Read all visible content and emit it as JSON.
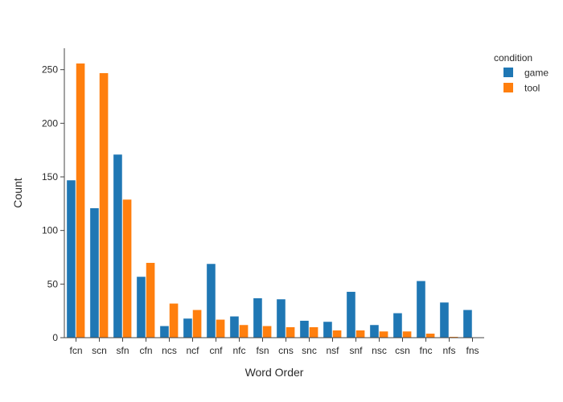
{
  "chart_data": {
    "type": "bar",
    "title": "",
    "xlabel": "Word Order",
    "ylabel": "Count",
    "ylim": [
      0,
      270
    ],
    "yticks": [
      0,
      50,
      100,
      150,
      200,
      250
    ],
    "grid": false,
    "legend": {
      "title": "condition",
      "placement": "top-right"
    },
    "categories": [
      "fcn",
      "scn",
      "sfn",
      "cfn",
      "ncs",
      "ncf",
      "cnf",
      "nfc",
      "fsn",
      "cns",
      "snc",
      "nsf",
      "snf",
      "nsc",
      "csn",
      "fnc",
      "nfs",
      "fns"
    ],
    "series": [
      {
        "name": "game",
        "color": "#1f77b4",
        "values": [
          147,
          121,
          171,
          57,
          11,
          18,
          69,
          20,
          37,
          36,
          16,
          15,
          43,
          12,
          23,
          53,
          33,
          26
        ]
      },
      {
        "name": "tool",
        "color": "#ff7f0e",
        "values": [
          256,
          247,
          129,
          70,
          32,
          26,
          17,
          12,
          11,
          10,
          10,
          7,
          7,
          6,
          6,
          4,
          1,
          null
        ]
      }
    ]
  }
}
